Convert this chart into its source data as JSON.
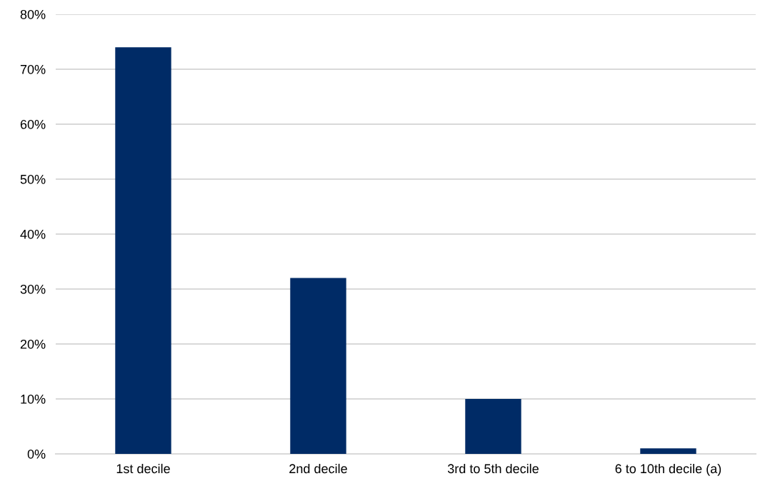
{
  "chart_data": {
    "type": "bar",
    "categories": [
      "1st decile",
      "2nd decile",
      "3rd to 5th decile",
      "6 to 10th decile (a)"
    ],
    "values": [
      74,
      32,
      10,
      1
    ],
    "color": "#002b66",
    "ylim": [
      0,
      80
    ],
    "yticks": [
      {
        "value": 0,
        "label": "0%"
      },
      {
        "value": 10,
        "label": "10%"
      },
      {
        "value": 20,
        "label": "20%"
      },
      {
        "value": 30,
        "label": "30%"
      },
      {
        "value": 40,
        "label": "40%"
      },
      {
        "value": 50,
        "label": "50%"
      },
      {
        "value": 60,
        "label": "60%"
      },
      {
        "value": 70,
        "label": "70%"
      },
      {
        "value": 80,
        "label": "80%"
      }
    ],
    "grid": "y",
    "legend": false
  }
}
